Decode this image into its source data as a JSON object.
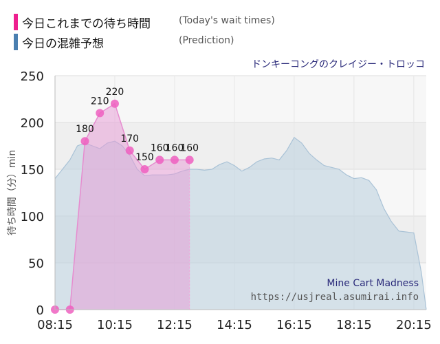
{
  "legend": {
    "actual": {
      "label": "今日これまでの待ち時間",
      "sub": "(Today's wait times)",
      "color": "#ee1f8f"
    },
    "predicted": {
      "label": "今日の混雑予想",
      "sub": "(Prediction)",
      "color": "#4a7fb0"
    }
  },
  "ride_name_ja": "ドンキーコングのクレイジー・トロッコ",
  "ride_name_en": "Mine Cart Madness",
  "site_url": "https://usjreal.asumirai.info",
  "chart_data": {
    "type": "area",
    "ylabel": "待ち時間（分）min",
    "ylim": [
      0,
      250
    ],
    "yticks": [
      0,
      50,
      100,
      150,
      200,
      250
    ],
    "xlim": [
      "08:15",
      "20:40"
    ],
    "xticks": [
      "08:15",
      "10:15",
      "12:15",
      "14:15",
      "16:15",
      "18:15",
      "20:15"
    ],
    "grid": true,
    "series": [
      {
        "name": "今日これまでの待ち時間",
        "color": "#ee1f8f",
        "points": [
          {
            "x": "08:15",
            "y": 0,
            "label": ""
          },
          {
            "x": "08:45",
            "y": 0,
            "label": ""
          },
          {
            "x": "09:15",
            "y": 180,
            "label": "180"
          },
          {
            "x": "09:45",
            "y": 210,
            "label": "210"
          },
          {
            "x": "10:15",
            "y": 220,
            "label": "220"
          },
          {
            "x": "10:45",
            "y": 170,
            "label": "170"
          },
          {
            "x": "11:15",
            "y": 150,
            "label": "150"
          },
          {
            "x": "11:45",
            "y": 160,
            "label": "160"
          },
          {
            "x": "12:15",
            "y": 160,
            "label": "160"
          },
          {
            "x": "12:45",
            "y": 160,
            "label": "160"
          }
        ]
      },
      {
        "name": "今日の混雑予想",
        "color": "#4a7fb0",
        "points": [
          {
            "x": "08:15",
            "y": 140
          },
          {
            "x": "08:30",
            "y": 150
          },
          {
            "x": "08:45",
            "y": 160
          },
          {
            "x": "09:00",
            "y": 175
          },
          {
            "x": "09:15",
            "y": 178
          },
          {
            "x": "09:30",
            "y": 175
          },
          {
            "x": "09:45",
            "y": 172
          },
          {
            "x": "10:00",
            "y": 178
          },
          {
            "x": "10:15",
            "y": 180
          },
          {
            "x": "10:30",
            "y": 175
          },
          {
            "x": "10:45",
            "y": 165
          },
          {
            "x": "11:00",
            "y": 150
          },
          {
            "x": "11:15",
            "y": 143
          },
          {
            "x": "11:30",
            "y": 144
          },
          {
            "x": "11:45",
            "y": 144
          },
          {
            "x": "12:00",
            "y": 144
          },
          {
            "x": "12:15",
            "y": 145
          },
          {
            "x": "12:30",
            "y": 148
          },
          {
            "x": "12:45",
            "y": 150
          },
          {
            "x": "13:00",
            "y": 150
          },
          {
            "x": "13:15",
            "y": 149
          },
          {
            "x": "13:30",
            "y": 150
          },
          {
            "x": "13:45",
            "y": 155
          },
          {
            "x": "14:00",
            "y": 158
          },
          {
            "x": "14:15",
            "y": 154
          },
          {
            "x": "14:30",
            "y": 148
          },
          {
            "x": "14:45",
            "y": 152
          },
          {
            "x": "15:00",
            "y": 158
          },
          {
            "x": "15:15",
            "y": 161
          },
          {
            "x": "15:30",
            "y": 162
          },
          {
            "x": "15:45",
            "y": 160
          },
          {
            "x": "16:00",
            "y": 170
          },
          {
            "x": "16:15",
            "y": 184
          },
          {
            "x": "16:30",
            "y": 178
          },
          {
            "x": "16:45",
            "y": 167
          },
          {
            "x": "17:00",
            "y": 160
          },
          {
            "x": "17:15",
            "y": 154
          },
          {
            "x": "17:30",
            "y": 152
          },
          {
            "x": "17:45",
            "y": 150
          },
          {
            "x": "18:00",
            "y": 144
          },
          {
            "x": "18:15",
            "y": 140
          },
          {
            "x": "18:30",
            "y": 141
          },
          {
            "x": "18:45",
            "y": 138
          },
          {
            "x": "19:00",
            "y": 128
          },
          {
            "x": "19:15",
            "y": 108
          },
          {
            "x": "19:30",
            "y": 94
          },
          {
            "x": "19:45",
            "y": 84
          },
          {
            "x": "20:00",
            "y": 83
          },
          {
            "x": "20:15",
            "y": 82
          },
          {
            "x": "20:30",
            "y": 40
          },
          {
            "x": "20:40",
            "y": 0
          }
        ]
      }
    ]
  }
}
